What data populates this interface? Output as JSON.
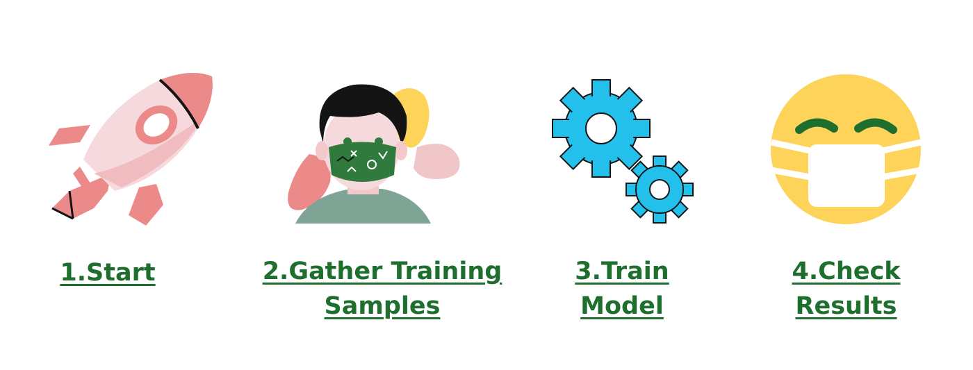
{
  "steps": [
    {
      "id": "start",
      "lines": [
        "1.Start"
      ],
      "icon": "rocket-icon"
    },
    {
      "id": "gather",
      "lines": [
        "2.Gather Training",
        "Samples"
      ],
      "icon": "masked-person-icon"
    },
    {
      "id": "train",
      "lines": [
        "3.Train",
        "Model"
      ],
      "icon": "gears-icon"
    },
    {
      "id": "check",
      "lines": [
        "4.Check",
        "Results"
      ],
      "icon": "masked-face-emoji-icon"
    }
  ],
  "colors": {
    "label": "#1e6e2e",
    "rocket": "#ec8a8a",
    "rocket_light": "#f4c9cc",
    "mask": "#2f7a3c",
    "hair": "#141414",
    "shirt": "#7ea495",
    "gear": "#24c0ec",
    "emoji": "#fdd35a"
  }
}
